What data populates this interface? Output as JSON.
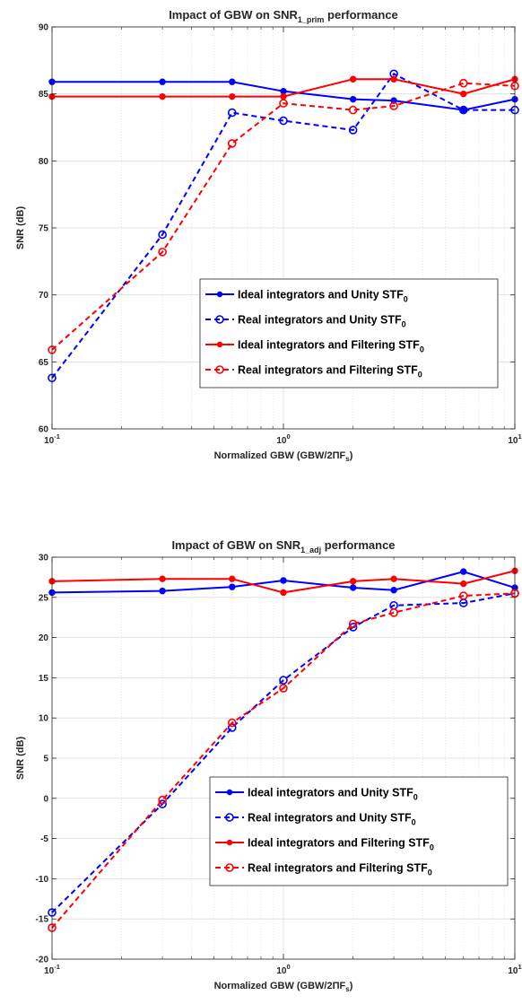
{
  "charts": [
    {
      "type": "line",
      "title": {
        "pre": "Impact of GBW on SNR",
        "sub": "1_prim",
        "post": " performance"
      },
      "xlabel": {
        "pre": "Normalized GBW (GBW/2",
        "pi": "ΠF",
        "sub": "s",
        "post": ")"
      },
      "ylabel": "SNR (dB)",
      "xscale": "log",
      "xlim": [
        0.1,
        10
      ],
      "ylim": [
        60,
        90
      ],
      "yticks": [
        "60",
        "65",
        "70",
        "75",
        "80",
        "85",
        "90"
      ],
      "xticks": [
        {
          "base": "10",
          "exp": "-1"
        },
        {
          "base": "10",
          "exp": "0"
        },
        {
          "base": "10",
          "exp": "1"
        }
      ],
      "grid": true,
      "legend_position": "center-right",
      "x": [
        0.1,
        0.3,
        0.6,
        1,
        2,
        3,
        6,
        10
      ],
      "series": [
        {
          "name": {
            "pre": "Ideal integrators and Unity STF",
            "sub": "0"
          },
          "color": "#0000ff",
          "style": "solid",
          "marker": "dot",
          "values": [
            85.9,
            85.9,
            85.9,
            85.2,
            84.6,
            84.5,
            83.8,
            84.6
          ]
        },
        {
          "name": {
            "pre": "Real integrators and Unity STF",
            "sub": "0"
          },
          "color": "#0000ff",
          "style": "dashed",
          "marker": "circle",
          "values": [
            63.8,
            74.5,
            83.6,
            83.0,
            82.3,
            86.5,
            83.8,
            83.8
          ]
        },
        {
          "name": {
            "pre": "Ideal integrators and Filtering STF",
            "sub": "0"
          },
          "color": "#ff0000",
          "style": "solid",
          "marker": "dot",
          "values": [
            84.8,
            84.8,
            84.8,
            84.8,
            86.1,
            86.1,
            85.0,
            86.1
          ]
        },
        {
          "name": {
            "pre": "Real integrators and Filtering STF",
            "sub": "0"
          },
          "color": "#ff0000",
          "style": "dashed",
          "marker": "circle",
          "values": [
            65.9,
            73.2,
            81.3,
            84.3,
            83.8,
            84.1,
            85.8,
            85.6
          ]
        }
      ]
    },
    {
      "type": "line",
      "title": {
        "pre": "Impact of GBW on SNR",
        "sub": "1_adj",
        "post": " performance"
      },
      "xlabel": {
        "pre": "Normalized GBW (GBW/2",
        "pi": "ΠF",
        "sub": "s",
        "post": ")"
      },
      "ylabel": "SNR (dB)",
      "xscale": "log",
      "xlim": [
        0.1,
        10
      ],
      "ylim": [
        -20,
        30
      ],
      "yticks": [
        "-20",
        "-15",
        "-10",
        "-5",
        "0",
        "5",
        "10",
        "15",
        "20",
        "25",
        "30"
      ],
      "xticks": [
        {
          "base": "10",
          "exp": "-1"
        },
        {
          "base": "10",
          "exp": "0"
        },
        {
          "base": "10",
          "exp": "1"
        }
      ],
      "grid": true,
      "legend_position": "lower-right",
      "x": [
        0.1,
        0.3,
        0.6,
        1,
        2,
        3,
        6,
        10
      ],
      "series": [
        {
          "name": {
            "pre": "Ideal integrators and Unity STF",
            "sub": "0"
          },
          "color": "#0000ff",
          "style": "solid",
          "marker": "dot",
          "values": [
            25.6,
            25.8,
            26.3,
            27.1,
            26.2,
            25.9,
            28.2,
            26.2
          ]
        },
        {
          "name": {
            "pre": "Real integrators and Unity STF",
            "sub": "0"
          },
          "color": "#0000ff",
          "style": "dashed",
          "marker": "circle",
          "values": [
            -14.2,
            -0.7,
            8.8,
            14.7,
            21.3,
            24.0,
            24.3,
            25.5
          ]
        },
        {
          "name": {
            "pre": "Ideal integrators and Filtering STF",
            "sub": "0"
          },
          "color": "#ff0000",
          "style": "solid",
          "marker": "dot",
          "values": [
            27.0,
            27.3,
            27.3,
            25.6,
            27.0,
            27.3,
            26.7,
            28.3
          ]
        },
        {
          "name": {
            "pre": "Real integrators and Filtering STF",
            "sub": "0"
          },
          "color": "#ff0000",
          "style": "dashed",
          "marker": "circle",
          "values": [
            -16.1,
            -0.2,
            9.4,
            13.7,
            21.7,
            23.1,
            25.2,
            25.5
          ]
        }
      ]
    }
  ]
}
